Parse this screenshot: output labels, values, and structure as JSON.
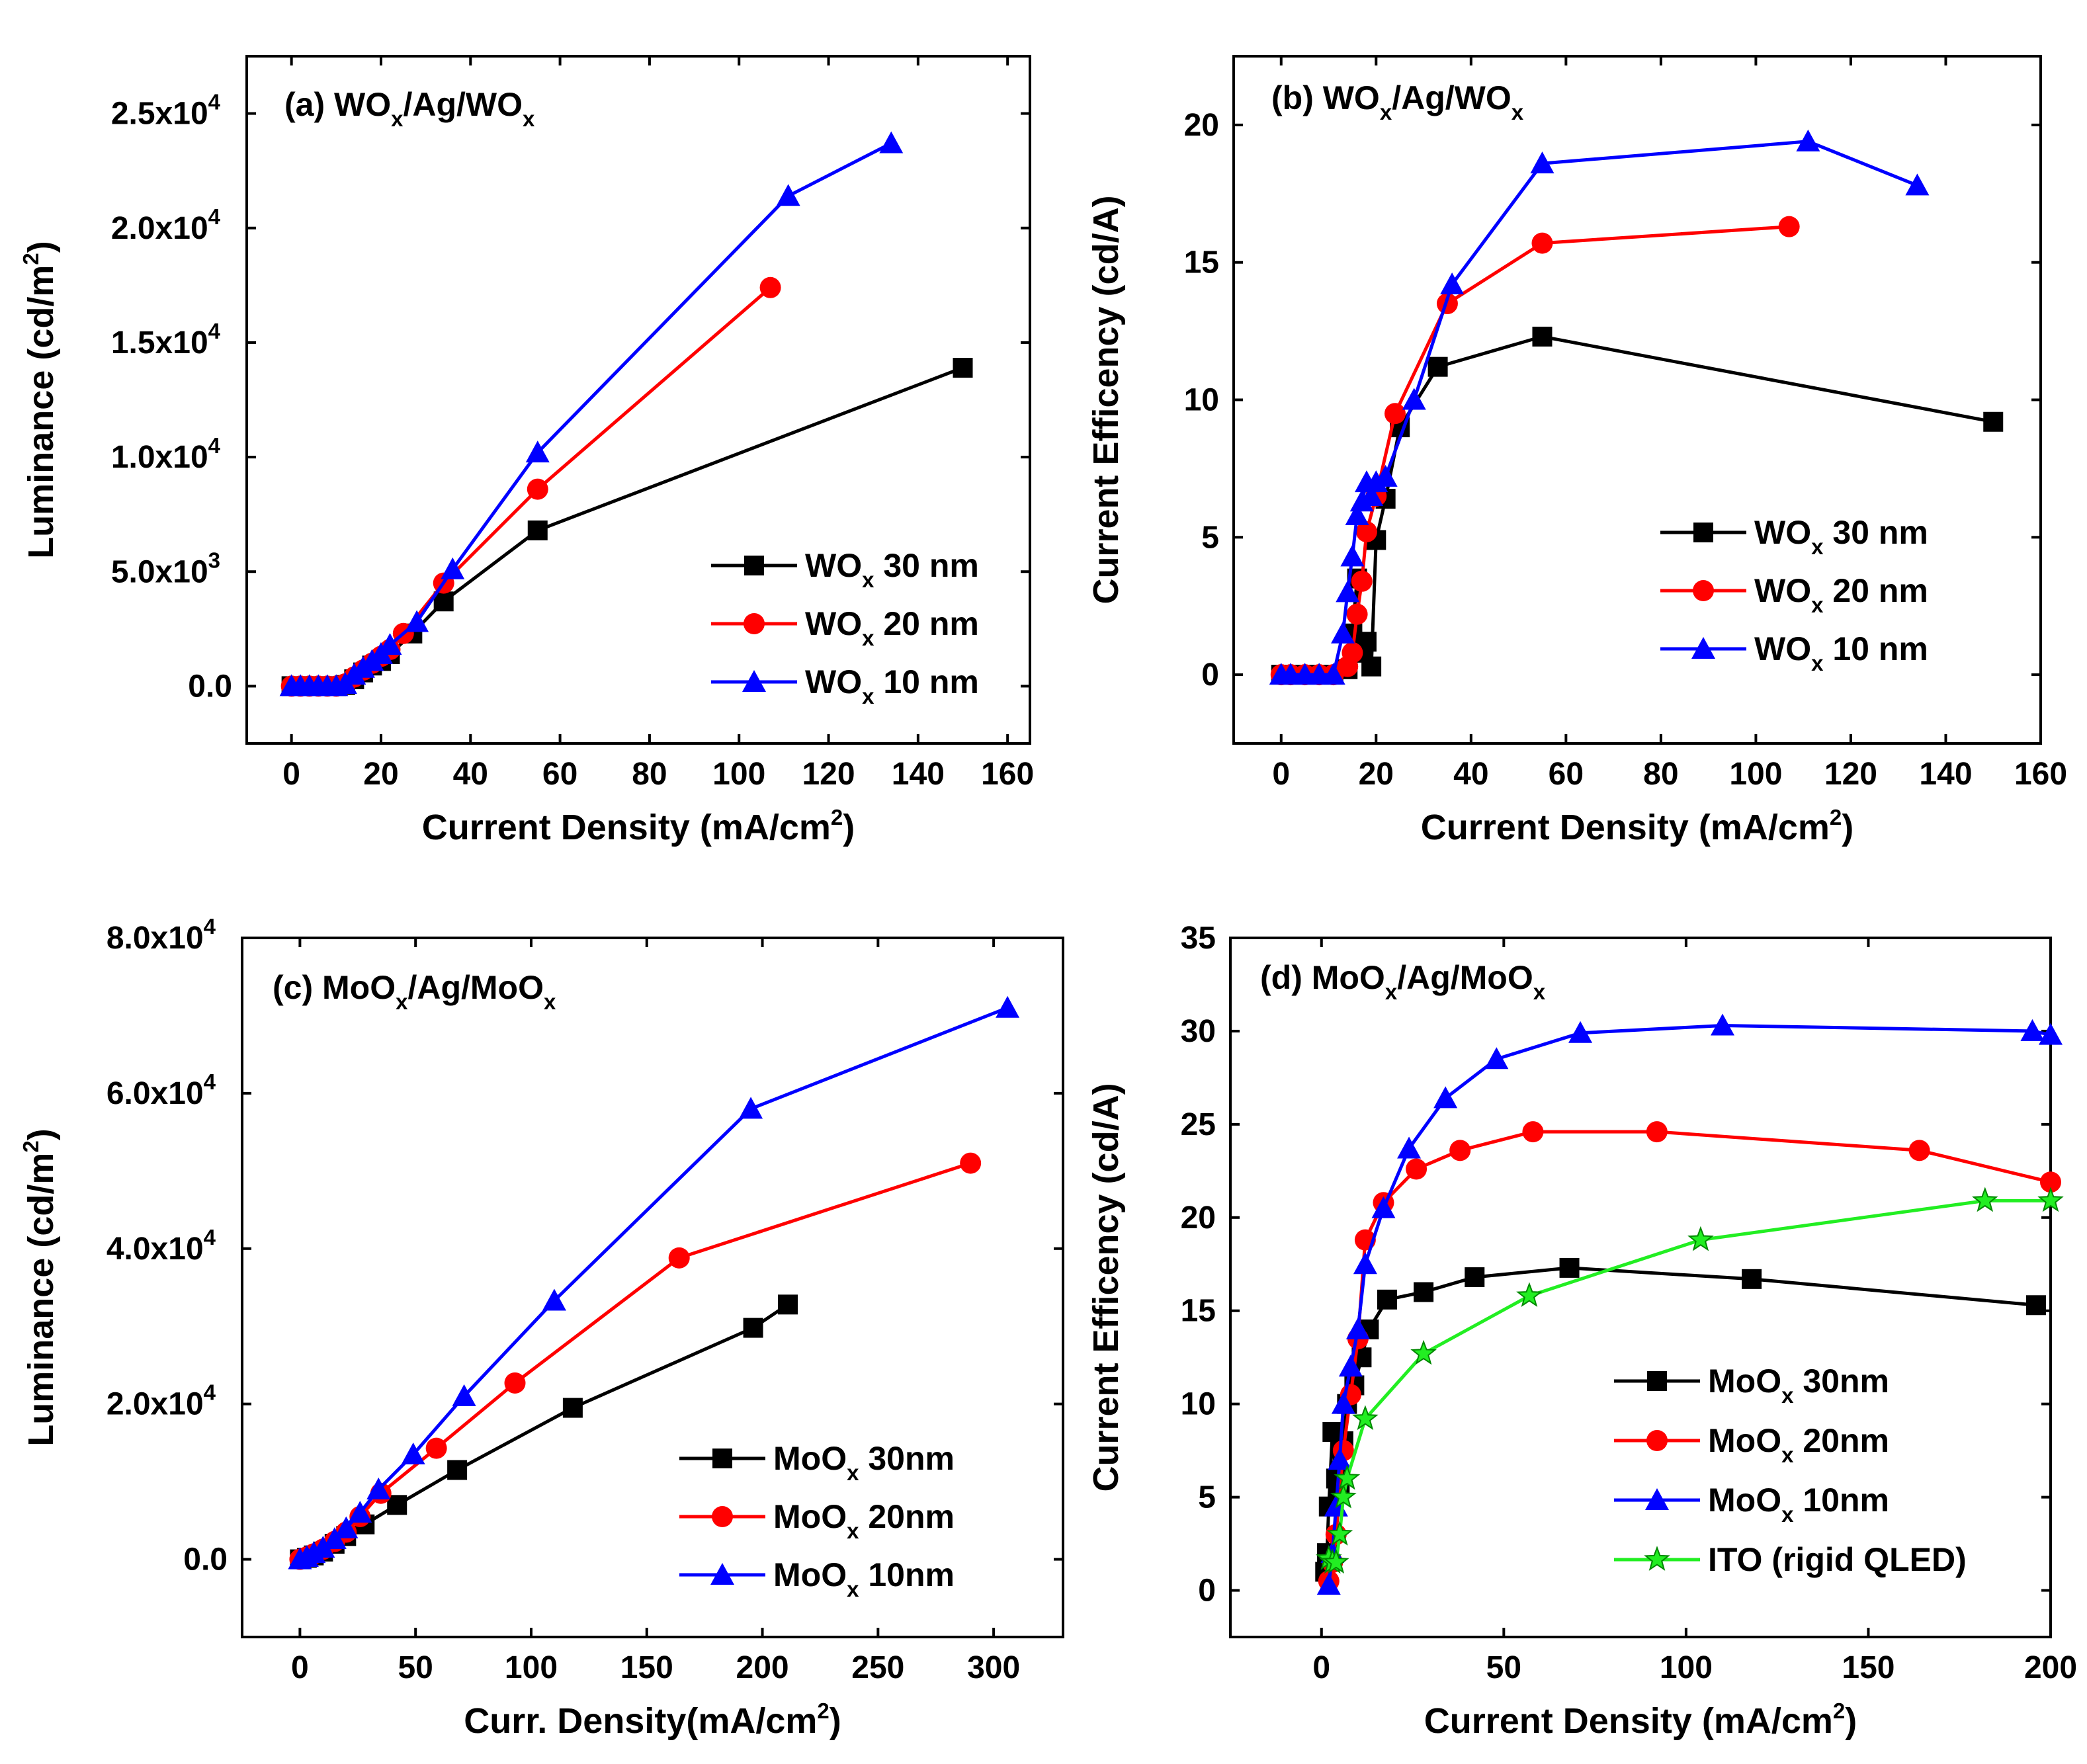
{
  "colors": {
    "black": "#000000",
    "red": "#ff0000",
    "blue": "#0000ff",
    "green": "#22ee22",
    "background": "#ffffff"
  },
  "chart_data": [
    {
      "id": "a",
      "type": "line",
      "title": {
        "label": "(a)",
        "base": "WO",
        "sub": "x",
        "mid": "/Ag/WO",
        "sub2": "x"
      },
      "xlabel": {
        "text": "Current Density (mA/cm",
        "sup": "2",
        "end": ")"
      },
      "ylabel": {
        "text": "Luminance (cd/m",
        "sup": "2",
        "end": ")"
      },
      "xlim": [
        -10,
        165
      ],
      "ylim": [
        -2500,
        27500
      ],
      "xticks": [
        0,
        20,
        40,
        60,
        80,
        100,
        120,
        140,
        160
      ],
      "xtick_labels": [
        "0",
        "20",
        "40",
        "60",
        "80",
        "100",
        "120",
        "140",
        "160"
      ],
      "yticks": [
        0,
        5000,
        10000,
        15000,
        20000,
        25000
      ],
      "ytick_labels": [
        {
          "text": "0.0"
        },
        {
          "text": "5.0x10",
          "sup": "3"
        },
        {
          "text": "1.0x10",
          "sup": "4"
        },
        {
          "text": "1.5x10",
          "sup": "4"
        },
        {
          "text": "2.0x10",
          "sup": "4"
        },
        {
          "text": "2.5x10",
          "sup": "4"
        }
      ],
      "legend_position": "bottom-right",
      "series": [
        {
          "name": "WO",
          "sub": "x",
          "suffix": " 30 nm",
          "color": "#000000",
          "marker": "square",
          "x": [
            0,
            2,
            4,
            6,
            8,
            10,
            12,
            14,
            16,
            18,
            20,
            22,
            27,
            34,
            55,
            150
          ],
          "y": [
            0,
            0,
            0,
            0,
            0,
            0,
            50,
            300,
            600,
            900,
            1100,
            1400,
            2300,
            3700,
            6800,
            13900
          ]
        },
        {
          "name": "WO",
          "sub": "x",
          "suffix": " 20 nm",
          "color": "#ff0000",
          "marker": "circle",
          "x": [
            0,
            2,
            4,
            6,
            8,
            10,
            12,
            14,
            16,
            18,
            20,
            22,
            25,
            34,
            55,
            107
          ],
          "y": [
            0,
            0,
            0,
            0,
            0,
            0,
            100,
            400,
            700,
            1000,
            1300,
            1600,
            2300,
            4500,
            8600,
            17400
          ]
        },
        {
          "name": "WO",
          "sub": "x",
          "suffix": " 10 nm",
          "color": "#0000ff",
          "marker": "triangle",
          "x": [
            0,
            2,
            4,
            6,
            8,
            10,
            12,
            14,
            16,
            18,
            20,
            22,
            28,
            36,
            55,
            111,
            134
          ],
          "y": [
            0,
            0,
            0,
            0,
            0,
            0,
            100,
            500,
            800,
            1100,
            1400,
            1800,
            2800,
            5100,
            10200,
            21400,
            23700
          ]
        }
      ]
    },
    {
      "id": "b",
      "type": "line",
      "title": {
        "label": "(b)",
        "base": "WO",
        "sub": "x",
        "mid": "/Ag/WO",
        "sub2": "x"
      },
      "xlabel": {
        "text": "Current Density (mA/cm",
        "sup": "2",
        "end": ")"
      },
      "ylabel": {
        "text": "Current Efficency (cd/A)"
      },
      "xlim": [
        -10,
        160
      ],
      "ylim": [
        -2.5,
        22.5
      ],
      "xticks": [
        0,
        20,
        40,
        60,
        80,
        100,
        120,
        140,
        160
      ],
      "xtick_labels": [
        "0",
        "20",
        "40",
        "60",
        "80",
        "100",
        "120",
        "140",
        "160"
      ],
      "yticks": [
        0,
        5,
        10,
        15,
        20
      ],
      "ytick_labels": [
        {
          "text": "0"
        },
        {
          "text": "5"
        },
        {
          "text": "10"
        },
        {
          "text": "15"
        },
        {
          "text": "20"
        }
      ],
      "legend_position": "bottom-right",
      "series": [
        {
          "name": "WO",
          "sub": "x",
          "suffix": " 30 nm",
          "color": "#000000",
          "marker": "square",
          "x": [
            0,
            2,
            5,
            8,
            11,
            14,
            15,
            16,
            17,
            18,
            19,
            20,
            22,
            25,
            33,
            55,
            150
          ],
          "y": [
            0,
            0,
            0,
            0,
            0,
            0.2,
            1.5,
            3.5,
            0.8,
            1.2,
            0.3,
            4.9,
            6.4,
            9.0,
            11.2,
            12.3,
            9.2
          ]
        },
        {
          "name": "WO",
          "sub": "x",
          "suffix": " 20 nm",
          "color": "#ff0000",
          "marker": "circle",
          "x": [
            0,
            2,
            5,
            8,
            11,
            14,
            15,
            16,
            17,
            18,
            20,
            24,
            35,
            55,
            107
          ],
          "y": [
            0,
            0,
            0,
            0,
            0,
            0.3,
            0.8,
            2.2,
            3.4,
            5.2,
            6.5,
            9.5,
            13.5,
            15.7,
            16.3
          ]
        },
        {
          "name": "WO",
          "sub": "x",
          "suffix": " 10 nm",
          "color": "#0000ff",
          "marker": "triangle",
          "x": [
            0,
            2,
            5,
            8,
            11,
            13,
            14,
            15,
            16,
            17,
            18,
            19,
            20,
            22,
            28,
            36,
            55,
            111,
            134
          ],
          "y": [
            0,
            0,
            0,
            0,
            0,
            1.5,
            3.0,
            4.3,
            5.8,
            6.3,
            7.0,
            6.5,
            7.0,
            7.2,
            10.0,
            14.2,
            18.6,
            19.4,
            17.8
          ]
        }
      ]
    },
    {
      "id": "c",
      "type": "line",
      "title": {
        "label": "(c)",
        "base": "MoO",
        "sub": "x",
        "mid": "/Ag/MoO",
        "sub2": "x"
      },
      "xlabel": {
        "text": "Curr. Density(mA/cm",
        "sup": "2",
        "end": ")"
      },
      "ylabel": {
        "text": "Luminance (cd/m",
        "sup": "2",
        "end": ")"
      },
      "xlim": [
        -25,
        330
      ],
      "ylim": [
        -10000,
        80000
      ],
      "xticks": [
        0,
        50,
        100,
        150,
        200,
        250,
        300
      ],
      "xtick_labels": [
        "0",
        "50",
        "100",
        "150",
        "200",
        "250",
        "300"
      ],
      "yticks": [
        0,
        20000,
        40000,
        60000,
        80000
      ],
      "ytick_labels": [
        {
          "text": "0.0"
        },
        {
          "text": "2.0x10",
          "sup": "4"
        },
        {
          "text": "4.0x10",
          "sup": "4"
        },
        {
          "text": "6.0x10",
          "sup": "4"
        },
        {
          "text": "8.0x10",
          "sup": "4"
        }
      ],
      "legend_position": "bottom-right",
      "series": [
        {
          "name": "MoO",
          "sub": "x",
          "suffix": " 30nm",
          "color": "#000000",
          "marker": "square",
          "x": [
            0,
            3,
            6,
            10,
            15,
            20,
            28,
            42,
            68,
            118,
            196,
            211
          ],
          "y": [
            0,
            200,
            500,
            1000,
            2000,
            3000,
            4500,
            7000,
            11500,
            19500,
            29800,
            32800
          ]
        },
        {
          "name": "MoO",
          "sub": "x",
          "suffix": " 20nm",
          "color": "#ff0000",
          "marker": "circle",
          "x": [
            0,
            3,
            6,
            10,
            15,
            20,
            26,
            35,
            59,
            93,
            164,
            290
          ],
          "y": [
            0,
            300,
            700,
            1300,
            2300,
            3500,
            5500,
            8500,
            14300,
            22700,
            38800,
            51000
          ]
        },
        {
          "name": "MoO",
          "sub": "x",
          "suffix": " 10nm",
          "color": "#0000ff",
          "marker": "triangle",
          "x": [
            0,
            3,
            6,
            10,
            15,
            20,
            26,
            34,
            49,
            71,
            110,
            195,
            306
          ],
          "y": [
            0,
            300,
            800,
            1500,
            2600,
            4000,
            6000,
            9000,
            13500,
            21000,
            33300,
            58000,
            71000
          ]
        }
      ]
    },
    {
      "id": "d",
      "type": "line",
      "title": {
        "label": "(d)",
        "base": "MoO",
        "sub": "x",
        "mid": "/Ag/MoO",
        "sub2": "x"
      },
      "xlabel": {
        "text": "Current Density (mA/cm",
        "sup": "2",
        "end": ")"
      },
      "ylabel": {
        "text": "Current Efficency (cd/A)"
      },
      "xlim": [
        -25,
        200
      ],
      "ylim": [
        -2.5,
        35
      ],
      "xticks": [
        0,
        50,
        100,
        150,
        200
      ],
      "xtick_labels": [
        "0",
        "50",
        "100",
        "150",
        "200"
      ],
      "yticks": [
        0,
        5,
        10,
        15,
        20,
        25,
        30,
        35
      ],
      "ytick_labels": [
        {
          "text": "0"
        },
        {
          "text": "5"
        },
        {
          "text": "10"
        },
        {
          "text": "15"
        },
        {
          "text": "20"
        },
        {
          "text": "25"
        },
        {
          "text": "30"
        },
        {
          "text": "35"
        }
      ],
      "legend_position": "bottom-right",
      "series": [
        {
          "name": "MoO",
          "sub": "x",
          "suffix": " 30nm",
          "color": "#000000",
          "marker": "square",
          "x": [
            1,
            1.5,
            2,
            3,
            4,
            5,
            6,
            7,
            9,
            11,
            13,
            18,
            28,
            42,
            68,
            118,
            196
          ],
          "y": [
            1,
            2,
            4.5,
            8.5,
            6.0,
            5.5,
            8.0,
            10.0,
            11.0,
            12.5,
            14.0,
            15.6,
            16.0,
            16.8,
            17.3,
            16.7,
            15.3
          ]
        },
        {
          "name": "MoO",
          "sub": "x",
          "suffix": " 20nm",
          "color": "#ff0000",
          "marker": "circle",
          "x": [
            2,
            3,
            4,
            6,
            8,
            10,
            12,
            17,
            26,
            38,
            58,
            92,
            164,
            200
          ],
          "y": [
            0.5,
            1.5,
            3.0,
            7.5,
            10.5,
            13.5,
            18.8,
            20.8,
            22.6,
            23.6,
            24.6,
            24.6,
            23.6,
            21.9
          ]
        },
        {
          "name": "MoO",
          "sub": "x",
          "suffix": " 10nm",
          "color": "#0000ff",
          "marker": "triangle",
          "x": [
            2,
            3,
            4,
            5,
            6,
            8,
            10,
            12,
            17,
            24,
            34,
            48,
            71,
            110,
            195,
            200
          ],
          "y": [
            0.3,
            2.0,
            4.5,
            7.0,
            10.0,
            12.0,
            14.0,
            17.5,
            20.5,
            23.7,
            26.4,
            28.5,
            29.9,
            30.3,
            30.0,
            29.8
          ]
        },
        {
          "name": "ITO (rigid QLED)",
          "sub": "",
          "suffix": "",
          "color": "#22ee22",
          "marker": "star",
          "x": [
            2,
            3,
            4,
            5,
            6,
            7,
            12,
            28,
            57,
            104,
            182,
            200
          ],
          "y": [
            1.7,
            1.5,
            1.5,
            3.0,
            5.0,
            6.0,
            9.2,
            12.7,
            15.8,
            18.8,
            20.9,
            20.9
          ]
        }
      ]
    }
  ]
}
